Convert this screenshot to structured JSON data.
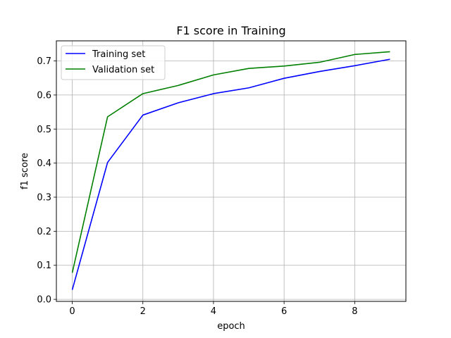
{
  "chart_data": {
    "type": "line",
    "title": "F1 score in Training",
    "xlabel": "epoch",
    "ylabel": "f1 score",
    "xlim": [
      -0.45,
      9.45
    ],
    "ylim": [
      -0.006,
      0.759
    ],
    "xticks": [
      0,
      2,
      4,
      6,
      8
    ],
    "yticks": [
      0.0,
      0.1,
      0.2,
      0.3,
      0.4,
      0.5,
      0.6,
      0.7
    ],
    "ytick_labels": [
      "0.0",
      "0.1",
      "0.2",
      "0.3",
      "0.4",
      "0.5",
      "0.6",
      "0.7"
    ],
    "grid": true,
    "legend_position": "upper-left",
    "x": [
      0,
      1,
      2,
      3,
      4,
      5,
      6,
      7,
      8,
      9
    ],
    "series": [
      {
        "name": "Training set",
        "color": "#0000ff",
        "values": [
          0.028,
          0.402,
          0.541,
          0.577,
          0.604,
          0.621,
          0.649,
          0.669,
          0.686,
          0.705
        ]
      },
      {
        "name": "Validation set",
        "color": "#008000",
        "values": [
          0.078,
          0.536,
          0.604,
          0.628,
          0.659,
          0.678,
          0.685,
          0.696,
          0.719,
          0.727
        ]
      }
    ]
  }
}
